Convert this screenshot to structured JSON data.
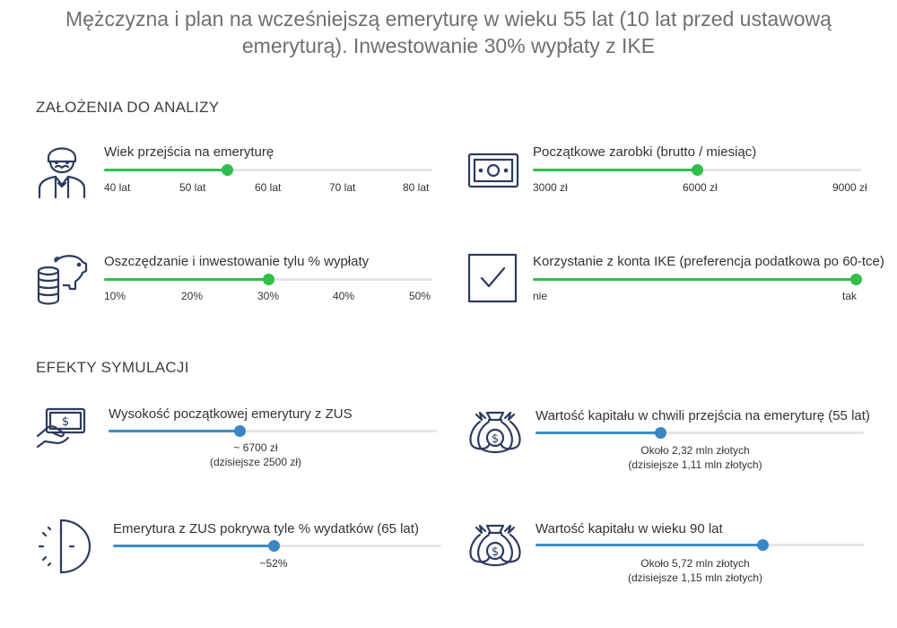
{
  "title": "Mężczyzna i plan na wcześniejszą emeryturę w wieku 55 lat (10 lat przed ustawową emeryturą). Inwestowanie 30% wypłaty z IKE",
  "assumptions": {
    "heading": "ZAŁOŻENIA DO ANALIZY",
    "retirement_age": {
      "label": "Wiek przejścia na emeryturę",
      "icon": "man-with-mustache-icon",
      "ticks": [
        "40 lat",
        "50 lat",
        "60 lat",
        "70 lat",
        "80 lat"
      ],
      "value_fraction": 0.375
    },
    "salary": {
      "label": "Początkowe zarobki (brutto / miesiąc)",
      "icon": "banknote-icon",
      "ticks": [
        "3000 zł",
        "6000 zł",
        "9000 zł"
      ],
      "value_fraction": 0.5
    },
    "savings_rate": {
      "label": "Oszczędzanie i inwestowanie tylu % wypłaty",
      "icon": "piggy-bank-coins-icon",
      "ticks": [
        "10%",
        "20%",
        "30%",
        "40%",
        "50%"
      ],
      "value_fraction": 0.5
    },
    "ike": {
      "label": "Korzystanie z konta IKE (preferencja podatkowa po 60-tce)",
      "icon": "checkbox-checked-icon",
      "ticks": [
        "nie",
        "tak"
      ],
      "value_fraction": 1.0
    }
  },
  "results": {
    "heading": "EFEKTY SYMULACJI",
    "zus_pension": {
      "label": "Wysokość początkowej emerytury z ZUS",
      "icon": "hand-cash-icon",
      "value_line1": "~ 6700 zł",
      "value_line2": "(dzisiejsze 2500 zł)",
      "value_fraction": 0.4
    },
    "capital_at_retirement": {
      "label": "Wartość kapitału w chwili przejścia na emeryturę (55 lat)",
      "icon": "money-bags-icon",
      "value_line1": "Około 2,32 mln złotych",
      "value_line2": "(dzisiejsze 1,11 mln złotych)",
      "value_fraction": 0.38
    },
    "zus_coverage": {
      "label": "Emerytura z ZUS pokrywa tyle % wydatków (65 lat)",
      "icon": "half-clock-icon",
      "value_line1": "~52%",
      "value_fraction": 0.49
    },
    "capital_at_90": {
      "label": "Wartość kapitału w wieku 90 lat",
      "icon": "money-bags-icon",
      "value_line1": "Około 5,72 mln złotych",
      "value_line2": "(dzisiejsze 1,15 mln złotych)",
      "value_fraction": 0.69
    }
  },
  "colors": {
    "green": "#2fbf4a",
    "blue": "#3b85c4",
    "icon": "#2d3b5e"
  }
}
